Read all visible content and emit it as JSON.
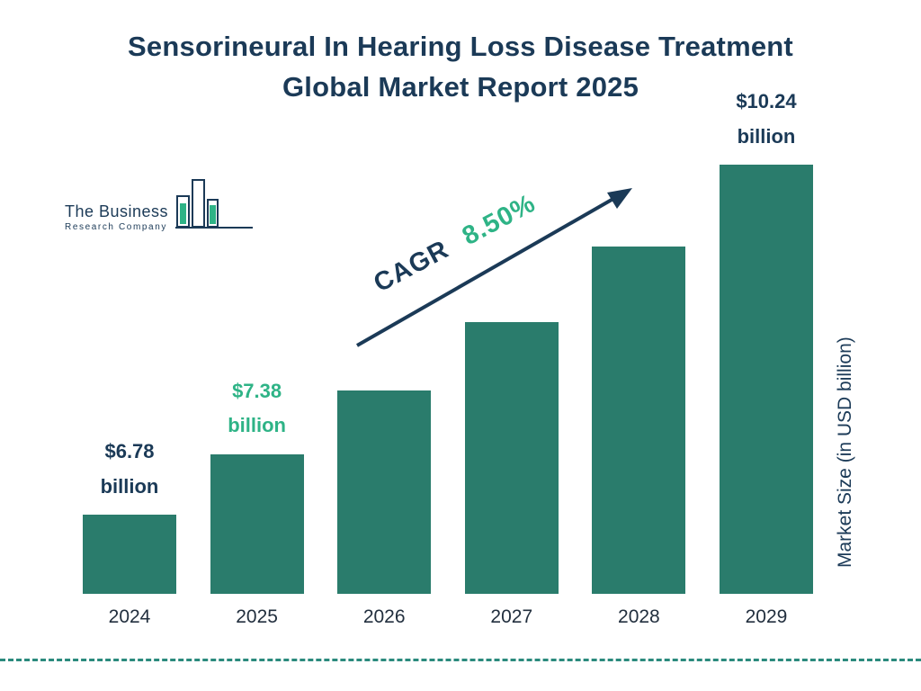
{
  "title": {
    "line1": "Sensorineural In Hearing Loss Disease Treatment",
    "line2": "Global Market Report 2025"
  },
  "logo": {
    "line1": "The Business",
    "line2": "Research Company"
  },
  "ylabel_text": "Market Size (in USD billion)",
  "colors": {
    "navy": "#1b3a57",
    "teal_bar": "#2a7c6c",
    "green_accent": "#2eb386",
    "dash_line": "#2b8a7d"
  },
  "chart_data": {
    "type": "bar",
    "title": "Sensorineural In Hearing Loss Disease Treatment Global Market Report 2025",
    "categories": [
      "2024",
      "2025",
      "2026",
      "2027",
      "2028",
      "2029"
    ],
    "values": [
      6.78,
      7.38,
      8.01,
      8.69,
      9.43,
      10.24
    ],
    "unit": "USD billion",
    "xlabel": "",
    "ylabel": "Market Size (in USD billion)",
    "ylim": [
      6.0,
      10.5
    ],
    "grid": false,
    "legend": "none",
    "bar_color": "#2a7c6c",
    "bar_labels": [
      {
        "category": "2024",
        "line1": "$6.78",
        "line2": "billion",
        "style": "navy"
      },
      {
        "category": "2025",
        "line1": "$7.38",
        "line2": "billion",
        "style": "green"
      },
      {
        "category": "2029",
        "line1": "$10.24",
        "line2": "billion",
        "style": "navy"
      }
    ],
    "cagr": {
      "label": "CAGR",
      "value": "8.50%"
    }
  }
}
